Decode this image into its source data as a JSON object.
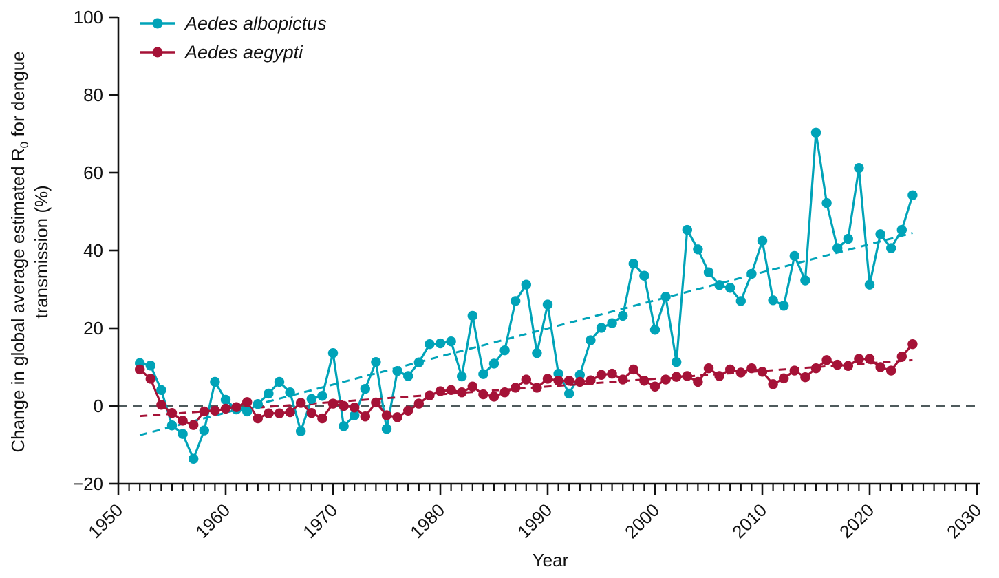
{
  "figure": {
    "xlabel": "Year",
    "ylabel_line1_pre": "Change in global average estimated R",
    "ylabel_sub": "0",
    "ylabel_line1_post": " for dengue",
    "ylabel_line2": "transmission (%)"
  },
  "legend": [
    {
      "label": "Aedes albopictus",
      "color": "#00a3b8"
    },
    {
      "label": "Aedes aegypti",
      "color": "#a51237"
    }
  ],
  "chart_data": {
    "type": "line",
    "title": "",
    "xlabel": "Year",
    "ylabel": "Change in global average estimated R0 for dengue transmission (%)",
    "xlim": [
      1950,
      2030
    ],
    "ylim": [
      -20,
      100
    ],
    "x_ticks": [
      1950,
      1960,
      1970,
      1980,
      1990,
      2000,
      2010,
      2020,
      2030
    ],
    "x_minor_tick_step": 1,
    "y_ticks": [
      -20,
      0,
      20,
      40,
      60,
      80,
      100
    ],
    "y_tick_labels": [
      "−20",
      "0",
      "20",
      "40",
      "60",
      "80",
      "100"
    ],
    "grid": false,
    "legend_position": "top-left",
    "zero_line": 0,
    "zero_line_color": "#4e5a5c",
    "years": [
      1952,
      1953,
      1954,
      1955,
      1956,
      1957,
      1958,
      1959,
      1960,
      1961,
      1962,
      1963,
      1964,
      1965,
      1966,
      1967,
      1968,
      1969,
      1970,
      1971,
      1972,
      1973,
      1974,
      1975,
      1976,
      1977,
      1978,
      1979,
      1980,
      1981,
      1982,
      1983,
      1984,
      1985,
      1986,
      1987,
      1988,
      1989,
      1990,
      1991,
      1992,
      1993,
      1994,
      1995,
      1996,
      1997,
      1998,
      1999,
      2000,
      2001,
      2002,
      2003,
      2004,
      2005,
      2006,
      2007,
      2008,
      2009,
      2010,
      2011,
      2012,
      2013,
      2014,
      2015,
      2016,
      2017,
      2018,
      2019,
      2020,
      2021,
      2022,
      2023,
      2024
    ],
    "series": [
      {
        "name": "Aedes albopictus",
        "color": "#00a3b8",
        "values": [
          11,
          10.4,
          4.1,
          -5,
          -7.2,
          -13.6,
          -6.3,
          6.2,
          1.6,
          -0.9,
          -1.4,
          0.5,
          3.2,
          6.2,
          3.5,
          -6.5,
          1.8,
          2.6,
          13.6,
          -5.2,
          -2.4,
          4.4,
          11.3,
          -5.9,
          9,
          7.7,
          11.2,
          15.9,
          16.1,
          16.6,
          7.6,
          23.2,
          8.2,
          10.9,
          14.3,
          27,
          31.2,
          13.6,
          26.1,
          8.3,
          3.2,
          8,
          16.9,
          20.1,
          21.3,
          23.2,
          36.6,
          33.5,
          19.6,
          28.1,
          11.3,
          45.3,
          40.3,
          34.4,
          31.1,
          30.4,
          27,
          34,
          42.5,
          27.2,
          25.8,
          38.6,
          32.3,
          70.3,
          52.2,
          40.6,
          43,
          61.2,
          31.2,
          44.2,
          40.6,
          45.3,
          54.2
        ],
        "trend": {
          "x": [
            1952,
            2024
          ],
          "y": [
            -7.5,
            44.5
          ]
        }
      },
      {
        "name": "Aedes aegypti",
        "color": "#a51237",
        "values": [
          9.4,
          7,
          0.3,
          -1.8,
          -3.8,
          -4.9,
          -1.4,
          -1.2,
          -0.7,
          -0.3,
          1,
          -3.2,
          -1.9,
          -1.9,
          -1.6,
          0.8,
          -1.8,
          -3.2,
          0.6,
          0,
          -0.4,
          -2.7,
          0.9,
          -2.4,
          -2.9,
          -1.2,
          0.6,
          2.7,
          3.8,
          4.1,
          3.5,
          5,
          3,
          2.4,
          3.5,
          4.7,
          6.8,
          4.7,
          7,
          6.5,
          6.5,
          6.2,
          6.6,
          8,
          8.3,
          6.8,
          9.4,
          6.5,
          5,
          6.8,
          7.5,
          7.7,
          6.2,
          9.7,
          7.7,
          9.4,
          8.6,
          9.7,
          8.8,
          5.6,
          7.1,
          9.1,
          7.4,
          9.7,
          11.8,
          10.6,
          10.3,
          12.1,
          12.1,
          10,
          9.1,
          12.7,
          15.9
        ],
        "trend": {
          "x": [
            1952,
            2024
          ],
          "y": [
            -2.6,
            11.8
          ]
        }
      }
    ]
  }
}
